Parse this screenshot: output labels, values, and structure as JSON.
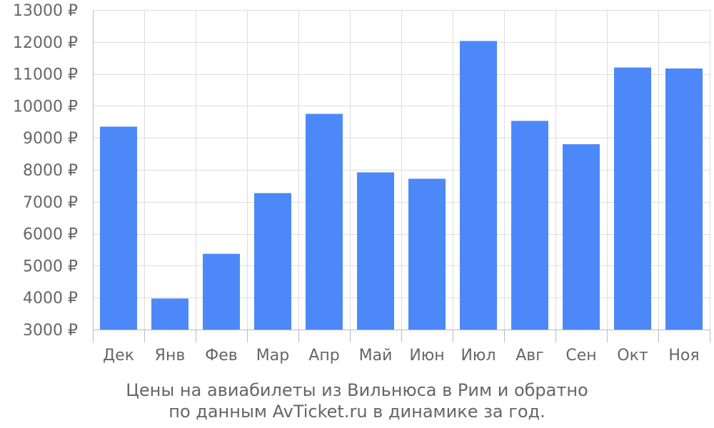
{
  "chart_data": {
    "type": "bar",
    "categories": [
      "Дек",
      "Янв",
      "Фев",
      "Мар",
      "Апр",
      "Май",
      "Июн",
      "Июл",
      "Авг",
      "Сен",
      "Окт",
      "Ноя"
    ],
    "values": [
      9350,
      3970,
      5370,
      7270,
      9750,
      7920,
      7720,
      12030,
      9530,
      8800,
      11200,
      11170
    ],
    "ylim": [
      3000,
      13000
    ],
    "yticks": [
      "3000 ₽",
      "4000 ₽",
      "5000 ₽",
      "6000 ₽",
      "7000 ₽",
      "8000 ₽",
      "9000 ₽",
      "10000 ₽",
      "11000 ₽",
      "12000 ₽",
      "13000 ₽"
    ],
    "title": "",
    "xlabel": "",
    "ylabel": "",
    "grid": true,
    "bar_color": "#4d88f9"
  },
  "caption": {
    "line1": "Цены на авиабилеты из Вильнюса в Рим и обратно",
    "line2": "по данным AvTicket.ru в динамике за год."
  }
}
